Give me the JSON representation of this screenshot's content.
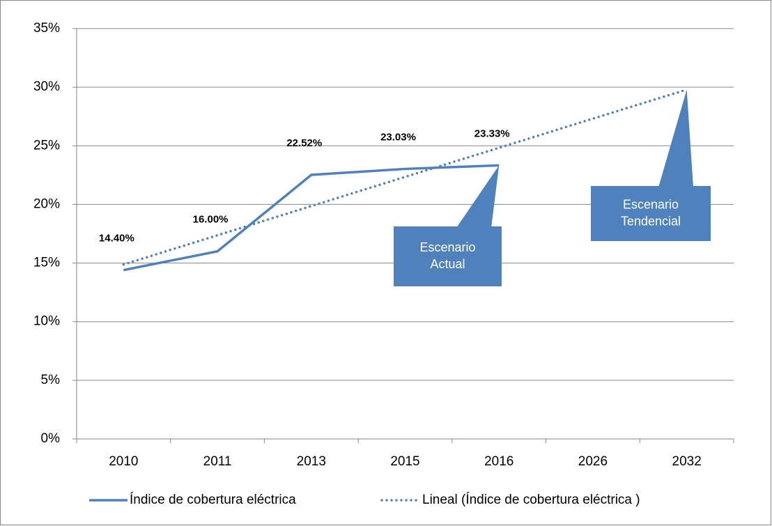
{
  "chart_data": {
    "type": "line",
    "categories": [
      "2010",
      "2011",
      "2013",
      "2015",
      "2016",
      "2026",
      "2032"
    ],
    "series": [
      {
        "name": "Índice de cobertura eléctrica",
        "color": "#4f81bd",
        "style": "solid",
        "values": [
          14.4,
          16.0,
          22.52,
          23.03,
          23.33,
          null,
          null
        ],
        "value_labels": [
          "14.40%",
          "16.00%",
          "22.52%",
          "23.03%",
          "23.33%",
          null,
          null
        ]
      },
      {
        "name": "Lineal (Índice de cobertura eléctrica )",
        "color": "#4f81bd",
        "style": "dotted",
        "values": [
          14.88,
          17.37,
          19.86,
          22.35,
          24.83,
          27.32,
          29.79
        ]
      }
    ],
    "ylim": [
      0,
      35
    ],
    "yticks": [
      {
        "value": 0,
        "label": "0%"
      },
      {
        "value": 5,
        "label": "5%"
      },
      {
        "value": 10,
        "label": "10%"
      },
      {
        "value": 15,
        "label": "15%"
      },
      {
        "value": 20,
        "label": "20%"
      },
      {
        "value": 25,
        "label": "25%"
      },
      {
        "value": 30,
        "label": "30%"
      },
      {
        "value": 35,
        "label": "35%"
      }
    ],
    "grid": true,
    "legend": "bottom",
    "annotations": [
      {
        "lines": [
          "Escenario",
          "Actual"
        ]
      },
      {
        "lines": [
          "Escenario",
          "Tendencial"
        ]
      }
    ]
  }
}
